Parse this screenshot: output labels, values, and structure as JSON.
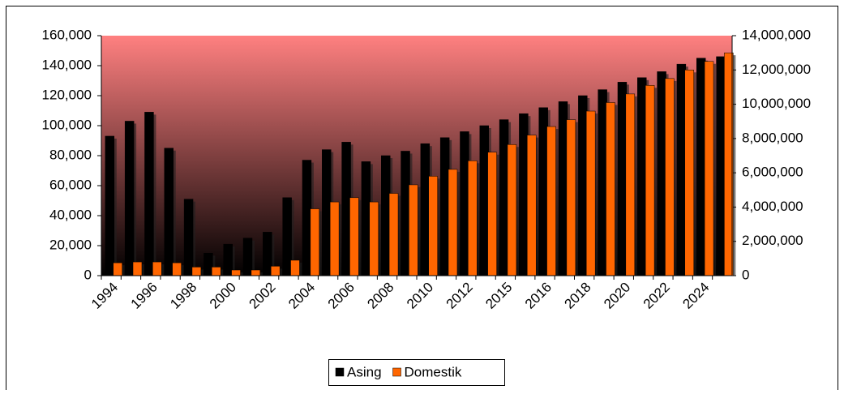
{
  "chart_data": {
    "type": "bar",
    "categories": [
      "1994",
      null,
      "1996",
      null,
      "1998",
      null,
      "2000",
      null,
      "2002",
      null,
      "2004",
      null,
      "2006",
      null,
      "2008",
      null,
      "2010",
      null,
      "2012",
      null,
      "2015",
      null,
      "2016",
      null,
      "2018",
      null,
      "2020",
      null,
      "2022",
      null,
      "2024",
      null
    ],
    "series": [
      {
        "name": "Asing",
        "color": "#000000",
        "axis": "y",
        "values": [
          93000,
          103000,
          109000,
          85000,
          51000,
          15000,
          21000,
          25000,
          29000,
          52000,
          77000,
          84000,
          89000,
          76000,
          80000,
          83000,
          88000,
          92000,
          96000,
          100000,
          104000,
          108000,
          112000,
          116000,
          120000,
          124000,
          129000,
          132000,
          136000,
          141000,
          145000,
          146000
        ]
      },
      {
        "name": "Domestik",
        "color": "#ff6600",
        "axis": "y2",
        "values": [
          750000,
          800000,
          800000,
          750000,
          500000,
          500000,
          330000,
          330000,
          550000,
          900000,
          3900000,
          4300000,
          4550000,
          4300000,
          4800000,
          5300000,
          5800000,
          6200000,
          6700000,
          7200000,
          7650000,
          8200000,
          8700000,
          9100000,
          9600000,
          10100000,
          10600000,
          11100000,
          11500000,
          12000000,
          12500000,
          13000000
        ]
      }
    ],
    "ylim": [
      0,
      160000
    ],
    "yticks": [
      0,
      {
        "value": 20000,
        "label": "20,000"
      },
      {
        "value": 40000,
        "label": "40,000"
      },
      {
        "value": 60000,
        "label": "60,000"
      },
      {
        "value": 80000,
        "label": "80,000"
      },
      {
        "value": 100000,
        "label": "100,000"
      },
      {
        "value": 120000,
        "label": "120,000"
      },
      {
        "value": 140000,
        "label": "140,000"
      },
      {
        "value": 160000,
        "label": "160,000"
      }
    ],
    "y2lim": [
      0,
      14000000
    ],
    "y2ticks": [
      0,
      {
        "value": 2000000,
        "label": "2,000,000"
      },
      {
        "value": 4000000,
        "label": "4,000,000"
      },
      {
        "value": 6000000,
        "label": "6,000,000"
      },
      {
        "value": 8000000,
        "label": "8,000,000"
      },
      {
        "value": 10000000,
        "label": "10,000,000"
      },
      {
        "value": 12000000,
        "label": "12,000,000"
      },
      {
        "value": 14000000,
        "label": "14,000,000"
      }
    ],
    "legend": "bottom"
  }
}
